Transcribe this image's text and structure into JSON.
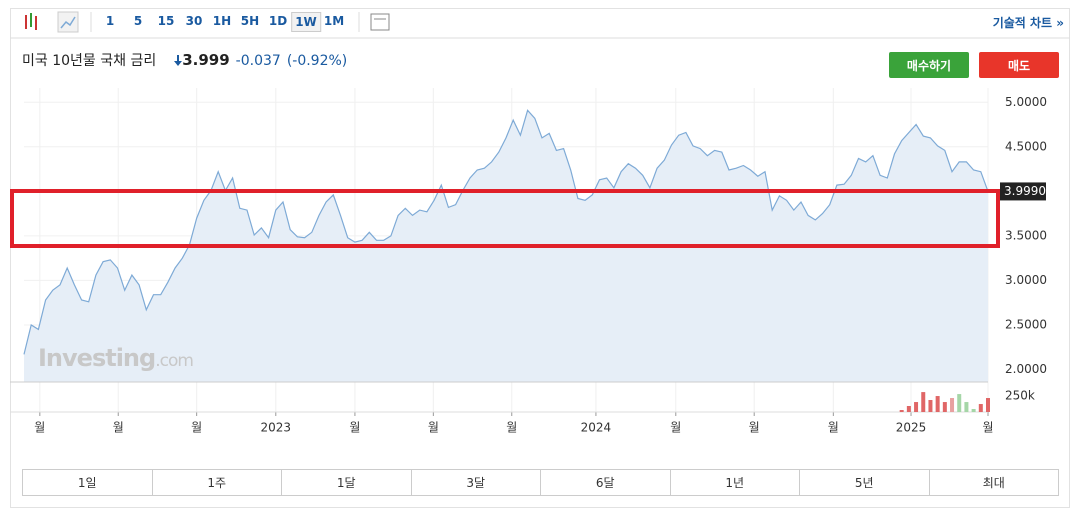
{
  "toolbar": {
    "intervals": [
      "1",
      "5",
      "15",
      "30",
      "1H",
      "5H",
      "1D",
      "1W",
      "1M"
    ],
    "selected_interval": 7,
    "technical_link": "기술적 차트 »"
  },
  "header": {
    "name": "미국 10년물 국채 금리",
    "price": "3.999",
    "change": "-0.037",
    "change_pct": "(-0.92%)"
  },
  "buttons": {
    "buy": "매수하기",
    "sell": "매도"
  },
  "ranges": [
    "1일",
    "1주",
    "1달",
    "3달",
    "6달",
    "1년",
    "5년",
    "최대"
  ],
  "watermark": {
    "brand": "Investing",
    "suffix": ".com"
  },
  "chart_data": {
    "type": "area",
    "color": "#7eaad6",
    "fill": "#e6eef7",
    "grid": true,
    "values": [
      2.17,
      2.5,
      2.45,
      2.78,
      2.89,
      2.95,
      3.14,
      2.95,
      2.78,
      2.76,
      3.06,
      3.21,
      3.23,
      3.14,
      2.89,
      3.06,
      2.95,
      2.67,
      2.84,
      2.84,
      2.98,
      3.14,
      3.25,
      3.4,
      3.7,
      3.9,
      4.01,
      4.22,
      4.01,
      4.15,
      3.81,
      3.79,
      3.51,
      3.59,
      3.48,
      3.79,
      3.88,
      3.57,
      3.49,
      3.48,
      3.54,
      3.73,
      3.88,
      3.96,
      3.73,
      3.48,
      3.43,
      3.45,
      3.54,
      3.45,
      3.45,
      3.5,
      3.73,
      3.81,
      3.73,
      3.79,
      3.77,
      3.9,
      4.07,
      3.82,
      3.85,
      4.01,
      4.15,
      4.24,
      4.26,
      4.33,
      4.44,
      4.6,
      4.8,
      4.63,
      4.91,
      4.82,
      4.6,
      4.65,
      4.46,
      4.48,
      4.24,
      3.92,
      3.9,
      3.96,
      4.13,
      4.15,
      4.04,
      4.22,
      4.31,
      4.26,
      4.18,
      4.04,
      4.26,
      4.35,
      4.52,
      4.63,
      4.66,
      4.51,
      4.48,
      4.4,
      4.46,
      4.44,
      4.24,
      4.26,
      4.29,
      4.24,
      4.17,
      4.22,
      3.79,
      3.95,
      3.9,
      3.79,
      3.88,
      3.73,
      3.68,
      3.75,
      3.85,
      4.07,
      4.08,
      4.18,
      4.37,
      4.33,
      4.4,
      4.18,
      4.15,
      4.42,
      4.57,
      4.66,
      4.75,
      4.62,
      4.6,
      4.51,
      4.46,
      4.22,
      4.33,
      4.33,
      4.24,
      4.22,
      3.999
    ],
    "last_value_label": "3.9990",
    "xlim": [
      0,
      134
    ],
    "xticks": [
      {
        "value": 2.2,
        "label": "월"
      },
      {
        "value": 13.1,
        "label": "월"
      },
      {
        "value": 24.0,
        "label": "월"
      },
      {
        "value": 35.0,
        "label": "2023"
      },
      {
        "value": 46.0,
        "label": "월"
      },
      {
        "value": 56.9,
        "label": "월"
      },
      {
        "value": 67.8,
        "label": "월"
      },
      {
        "value": 79.5,
        "label": "2024"
      },
      {
        "value": 90.6,
        "label": "월"
      },
      {
        "value": 101.5,
        "label": "월"
      },
      {
        "value": 112.5,
        "label": "월"
      },
      {
        "value": 123.3,
        "label": "2025"
      },
      {
        "value": 134,
        "label": "월"
      }
    ],
    "ylim": [
      1.86,
      5.16
    ],
    "yticks": [
      {
        "value": 2,
        "label": "2.0000"
      },
      {
        "value": 2.5,
        "label": "2.5000"
      },
      {
        "value": 3,
        "label": "3.0000"
      },
      {
        "value": 3.5,
        "label": "3.5000"
      },
      {
        "value": 4.5,
        "label": "4.5000"
      },
      {
        "value": 5,
        "label": "5.0000"
      }
    ],
    "volume": {
      "start": 122,
      "values": [
        31000,
        94000,
        156000,
        312000,
        188000,
        250000,
        156000,
        219000,
        281000,
        156000,
        47000,
        125000,
        219000
      ],
      "colors": [
        "#e06666",
        "#e06666",
        "#e06666",
        "#e06666",
        "#e06666",
        "#e06666",
        "#e06666",
        "#e8a0a0",
        "#a5d6a7",
        "#a5d6a7",
        "#a5d6a7",
        "#e06666",
        "#e06666"
      ]
    },
    "y2lim": [
      0,
      470000
    ],
    "y2ticks": [
      {
        "value": 250000,
        "label": "250k"
      }
    ]
  }
}
